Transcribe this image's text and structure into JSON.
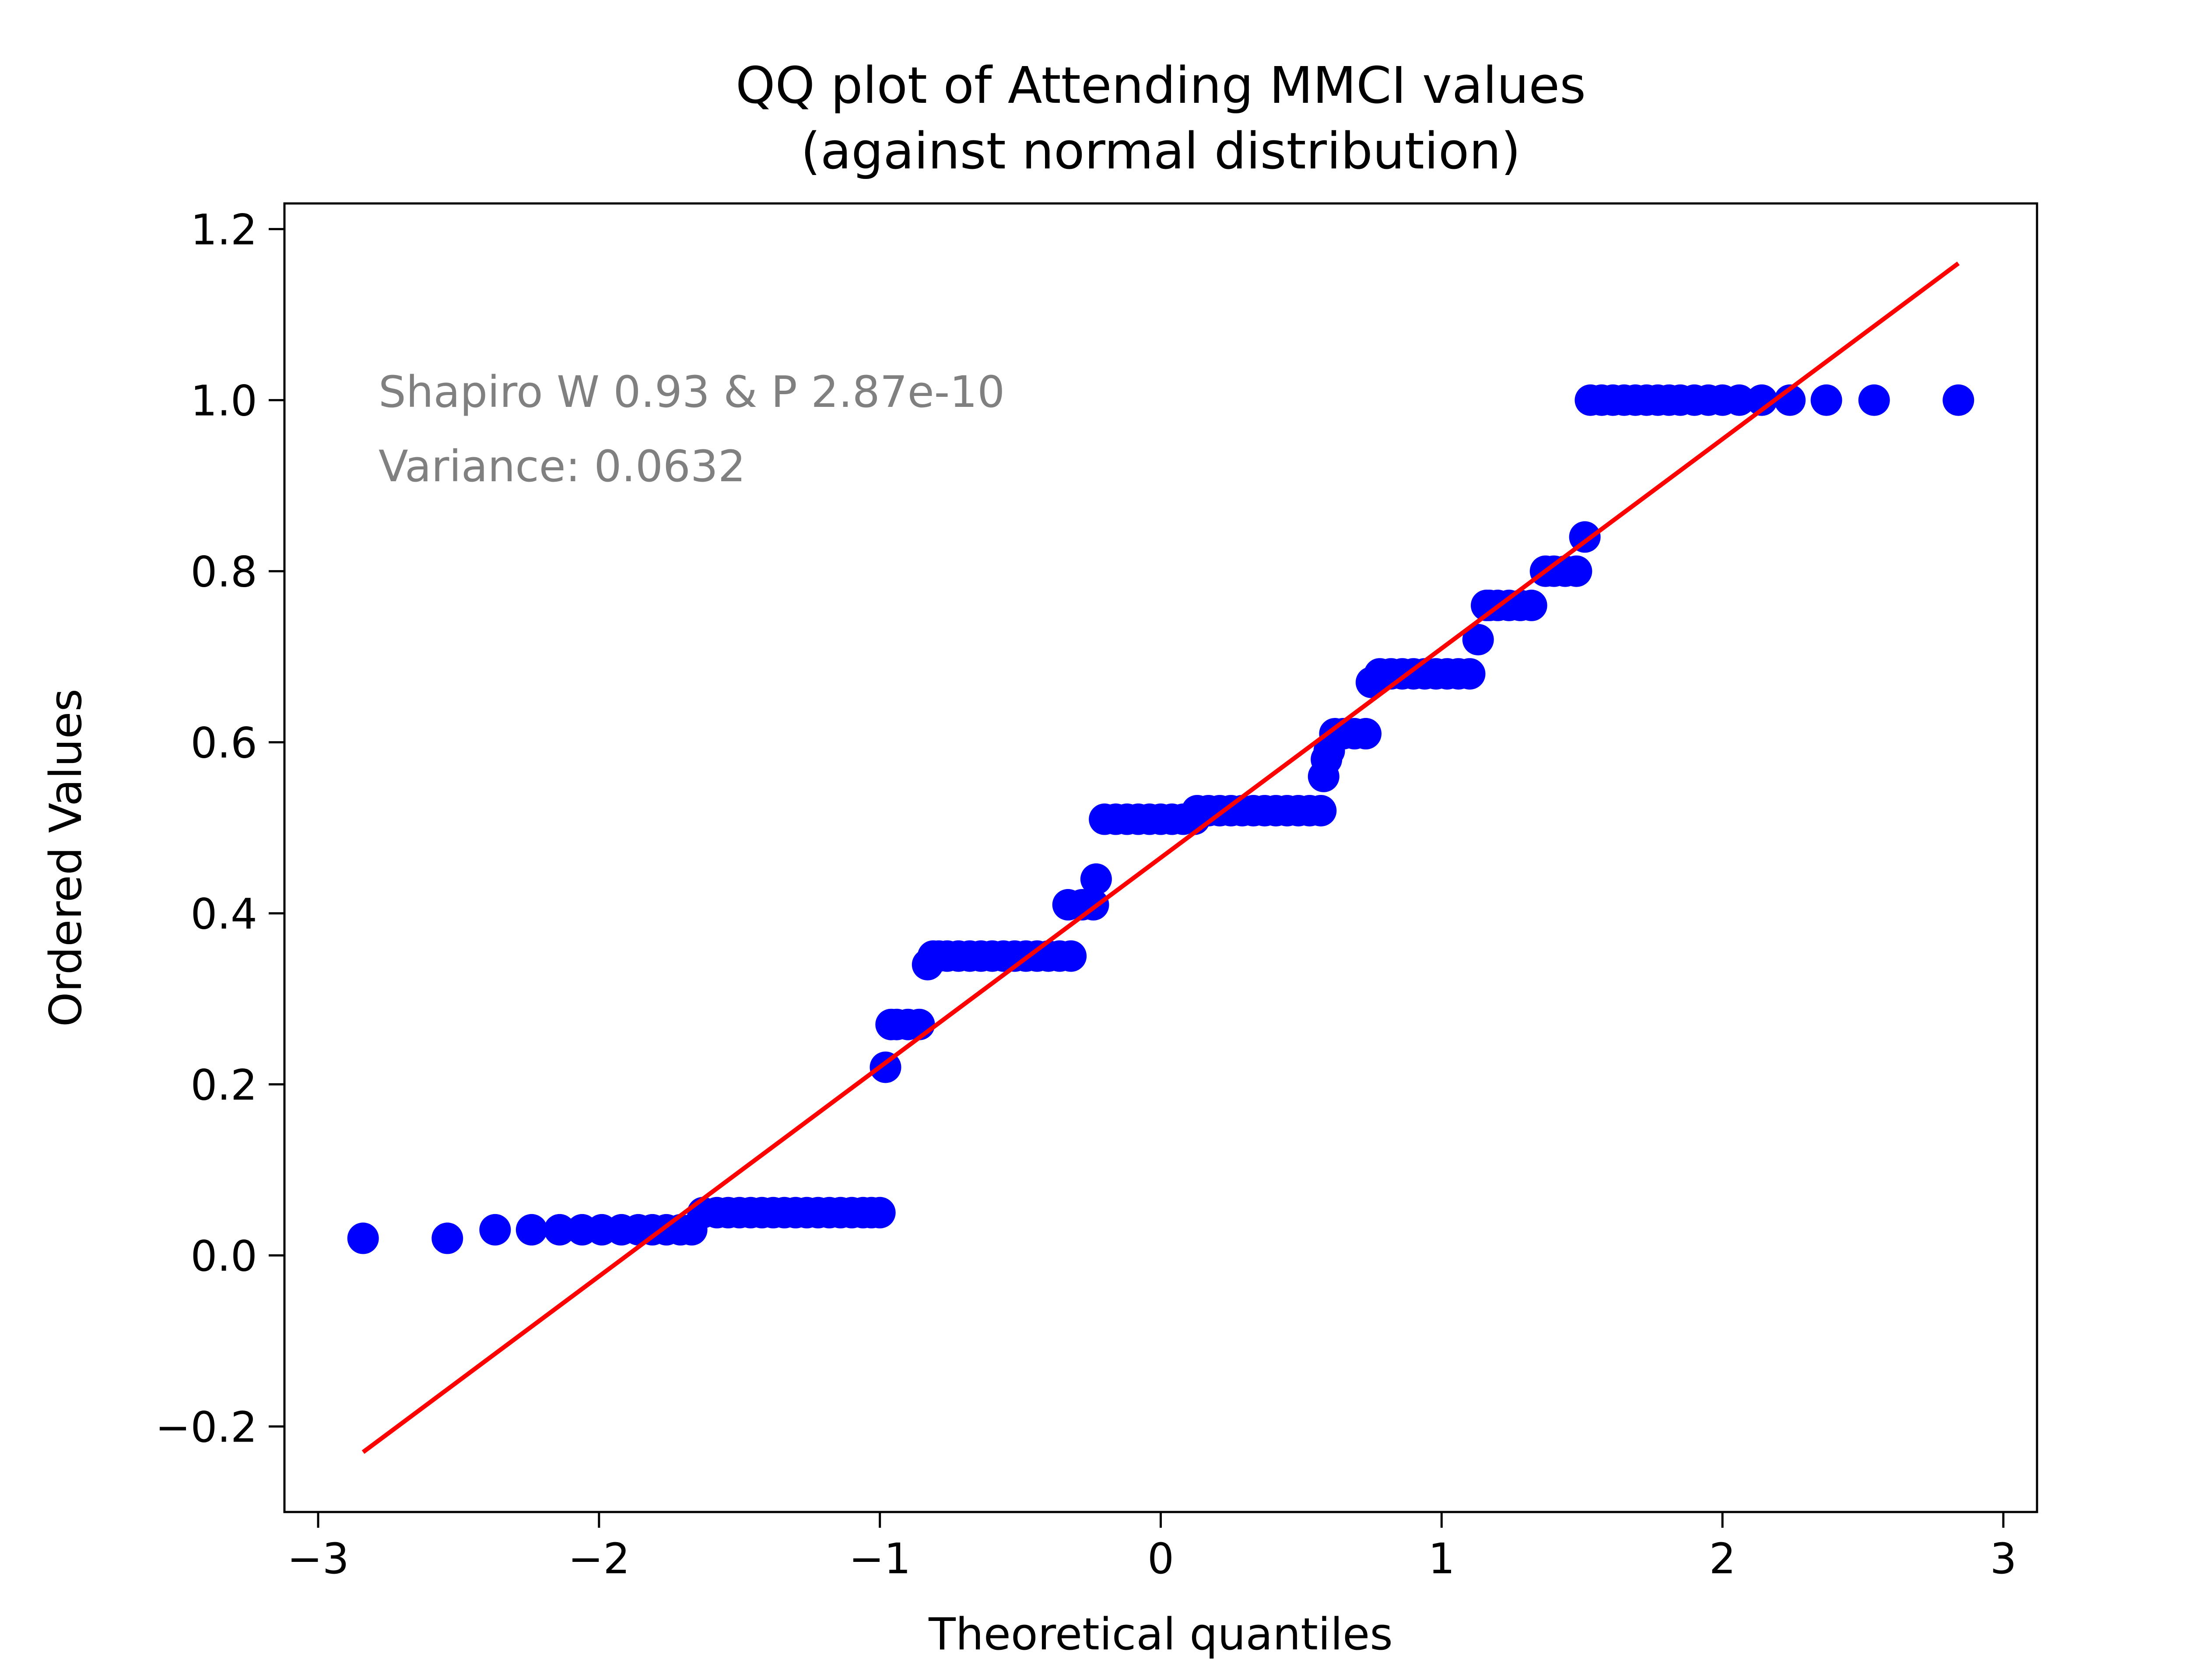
{
  "chart_data": {
    "type": "scatter",
    "title": "QQ plot of Attending MMCI values",
    "subtitle": "(against normal distribution)",
    "xlabel": "Theoretical quantiles",
    "ylabel": "Ordered Values",
    "xlim": [
      -3.12,
      3.12
    ],
    "ylim": [
      -0.3,
      1.23
    ],
    "x_ticks": [
      -3,
      -2,
      -1,
      0,
      1,
      2,
      3
    ],
    "y_ticks": [
      -0.2,
      0.0,
      0.2,
      0.4,
      0.6,
      0.8,
      1.0,
      1.2
    ],
    "x_tick_labels": [
      "−3",
      "−2",
      "−1",
      "0",
      "1",
      "2",
      "3"
    ],
    "y_tick_labels": [
      "−0.2",
      "0.0",
      "0.2",
      "0.4",
      "0.6",
      "0.8",
      "1.0",
      "1.2"
    ],
    "grid": false,
    "annotations": [
      "Shapiro W 0.93 & P 2.87e-10",
      "Variance: 0.0632"
    ],
    "colors": {
      "points": "#0000ff",
      "fit_line": "#ff0000",
      "annotation": "#808080"
    },
    "series": [
      {
        "kind": "points",
        "x": [
          -2.84,
          -2.54,
          -2.37,
          -2.24,
          -2.14,
          -2.06,
          -1.99,
          -1.92,
          -1.86,
          -1.81,
          -1.76,
          -1.71,
          -1.67,
          -1.63,
          -1.58,
          -1.54,
          -1.5,
          -1.46,
          -1.42,
          -1.38,
          -1.34,
          -1.3,
          -1.26,
          -1.22,
          -1.18,
          -1.14,
          -1.1,
          -1.06,
          -1.03,
          -1.0,
          -0.98,
          -0.96,
          -0.94,
          -0.9,
          -0.86,
          -0.83,
          -0.81,
          -0.79,
          -0.76,
          -0.72,
          -0.68,
          -0.64,
          -0.6,
          -0.56,
          -0.52,
          -0.48,
          -0.44,
          -0.4,
          -0.36,
          -0.33,
          -0.32,
          -0.28,
          -0.24,
          -0.23,
          -0.2,
          -0.16,
          -0.12,
          -0.08,
          -0.04,
          0.0,
          0.04,
          0.08,
          0.12,
          0.13,
          0.17,
          0.21,
          0.25,
          0.29,
          0.33,
          0.37,
          0.41,
          0.45,
          0.49,
          0.53,
          0.57,
          0.58,
          0.59,
          0.6,
          0.62,
          0.65,
          0.69,
          0.73,
          0.75,
          0.78,
          0.82,
          0.86,
          0.9,
          0.94,
          0.98,
          1.02,
          1.06,
          1.1,
          1.13,
          1.16,
          1.17,
          1.2,
          1.24,
          1.28,
          1.32,
          1.37,
          1.4,
          1.44,
          1.48,
          1.51,
          1.53,
          1.57,
          1.61,
          1.65,
          1.69,
          1.73,
          1.77,
          1.81,
          1.85,
          1.9,
          1.95,
          2.0,
          2.06,
          2.14,
          2.24,
          2.37,
          2.54,
          2.84
        ],
        "y": [
          0.02,
          0.02,
          0.03,
          0.03,
          0.03,
          0.03,
          0.03,
          0.03,
          0.03,
          0.03,
          0.03,
          0.03,
          0.03,
          0.05,
          0.05,
          0.05,
          0.05,
          0.05,
          0.05,
          0.05,
          0.05,
          0.05,
          0.05,
          0.05,
          0.05,
          0.05,
          0.05,
          0.05,
          0.05,
          0.05,
          0.22,
          0.27,
          0.27,
          0.27,
          0.27,
          0.34,
          0.35,
          0.35,
          0.35,
          0.35,
          0.35,
          0.35,
          0.35,
          0.35,
          0.35,
          0.35,
          0.35,
          0.35,
          0.35,
          0.41,
          0.35,
          0.41,
          0.41,
          0.44,
          0.51,
          0.51,
          0.51,
          0.51,
          0.51,
          0.51,
          0.51,
          0.51,
          0.51,
          0.52,
          0.52,
          0.52,
          0.52,
          0.52,
          0.52,
          0.52,
          0.52,
          0.52,
          0.52,
          0.52,
          0.52,
          0.56,
          0.58,
          0.59,
          0.61,
          0.61,
          0.61,
          0.61,
          0.67,
          0.68,
          0.68,
          0.68,
          0.68,
          0.68,
          0.68,
          0.68,
          0.68,
          0.68,
          0.72,
          0.76,
          0.76,
          0.76,
          0.76,
          0.76,
          0.76,
          0.8,
          0.8,
          0.8,
          0.8,
          0.84,
          1.0,
          1.0,
          1.0,
          1.0,
          1.0,
          1.0,
          1.0,
          1.0,
          1.0,
          1.0,
          1.0,
          1.0,
          1.0,
          1.0,
          1.0,
          1.0,
          1.0,
          1.0
        ]
      },
      {
        "kind": "fit_line",
        "x": [
          -2.84,
          2.84
        ],
        "y": [
          -0.23,
          1.16
        ]
      }
    ]
  }
}
